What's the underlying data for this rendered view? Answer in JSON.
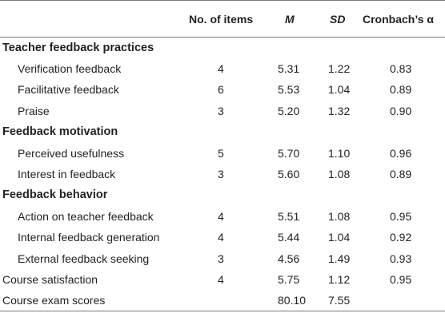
{
  "table": {
    "headers": {
      "label": "",
      "items": "No. of items",
      "m": "M",
      "sd": "SD",
      "alpha": "Cronbach’s α"
    },
    "rows": [
      {
        "type": "section",
        "label": "Teacher feedback practices",
        "items": "",
        "m": "",
        "sd": "",
        "alpha": ""
      },
      {
        "type": "item",
        "label": "Verification feedback",
        "items": "4",
        "m": "5.31",
        "sd": "1.22",
        "alpha": "0.83"
      },
      {
        "type": "item",
        "label": "Facilitative feedback",
        "items": "6",
        "m": "5.53",
        "sd": "1.04",
        "alpha": "0.89"
      },
      {
        "type": "item",
        "label": "Praise",
        "items": "3",
        "m": "5.20",
        "sd": "1.32",
        "alpha": "0.90"
      },
      {
        "type": "section",
        "label": "Feedback motivation",
        "items": "",
        "m": "",
        "sd": "",
        "alpha": ""
      },
      {
        "type": "item",
        "label": "Perceived usefulness",
        "items": "5",
        "m": "5.70",
        "sd": "1.10",
        "alpha": "0.96"
      },
      {
        "type": "item",
        "label": "Interest in feedback",
        "items": "3",
        "m": "5.60",
        "sd": "1.08",
        "alpha": "0.89"
      },
      {
        "type": "section",
        "label": "Feedback behavior",
        "items": "",
        "m": "",
        "sd": "",
        "alpha": ""
      },
      {
        "type": "item",
        "label": "Action on teacher feedback",
        "items": "4",
        "m": "5.51",
        "sd": "1.08",
        "alpha": "0.95"
      },
      {
        "type": "item",
        "label": "Internal feedback generation",
        "items": "4",
        "m": "5.44",
        "sd": "1.04",
        "alpha": "0.92"
      },
      {
        "type": "item",
        "label": "External feedback seeking",
        "items": "3",
        "m": "4.56",
        "sd": "1.49",
        "alpha": "0.93"
      },
      {
        "type": "toplevel",
        "label": "Course satisfaction",
        "items": "4",
        "m": "5.75",
        "sd": "1.12",
        "alpha": "0.95"
      },
      {
        "type": "toplevel",
        "label": "Course exam scores",
        "items": "",
        "m": "80.10",
        "sd": "7.55",
        "alpha": ""
      }
    ]
  }
}
